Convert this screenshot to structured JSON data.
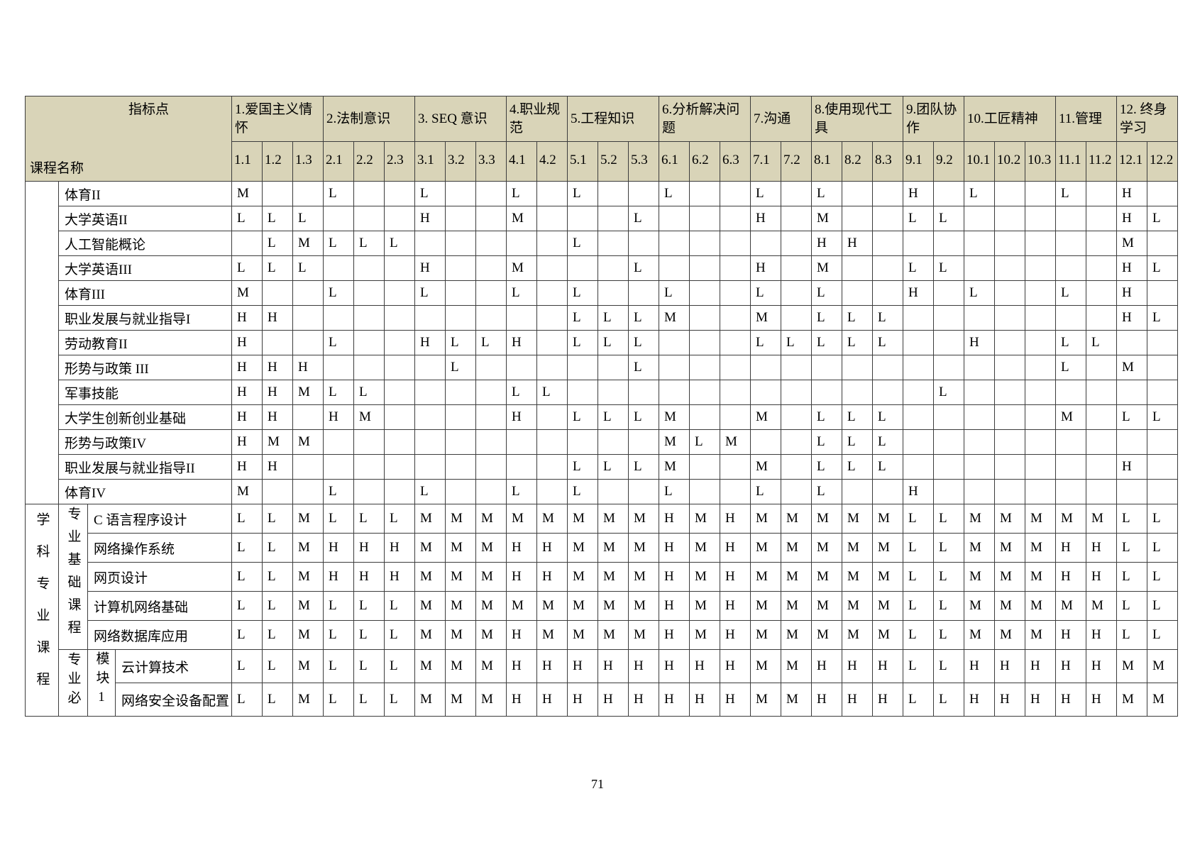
{
  "page": {
    "number": "71"
  },
  "table": {
    "corner": {
      "top_right_label": "指标点",
      "bottom_left_label": "课程名称"
    },
    "colors": {
      "header_bg": "#d9d4b8",
      "border": "#3c3c3c",
      "cell_bg": "#ffffff",
      "text": "#000000"
    },
    "legend_values": [
      "H",
      "M",
      "L"
    ],
    "indicator_groups": [
      {
        "label": "1.爱国主义情怀",
        "subs": [
          "1.1",
          "1.2",
          "1.3"
        ]
      },
      {
        "label": "2.法制意识",
        "subs": [
          "2.1",
          "2.2",
          "2.3"
        ]
      },
      {
        "label": "3. SEQ 意识",
        "subs": [
          "3.1",
          "3.2",
          "3.3"
        ]
      },
      {
        "label": "4.职业规范",
        "subs": [
          "4.1",
          "4.2"
        ]
      },
      {
        "label": "5.工程知识",
        "subs": [
          "5.1",
          "5.2",
          "5.3"
        ]
      },
      {
        "label": "6.分析解决问题",
        "subs": [
          "6.1",
          "6.2",
          "6.3"
        ]
      },
      {
        "label": "7.沟通",
        "subs": [
          "7.1",
          "7.2"
        ]
      },
      {
        "label": "8.使用现代工具",
        "subs": [
          "8.1",
          "8.2",
          "8.3"
        ]
      },
      {
        "label": "9.团队协作",
        "subs": [
          "9.1",
          "9.2"
        ]
      },
      {
        "label": "10.工匠精神",
        "subs": [
          "10.1",
          "10.2",
          "10.3"
        ]
      },
      {
        "label": "11.管理",
        "subs": [
          "11.1",
          "11.2"
        ]
      },
      {
        "label": "12. 终身学习",
        "subs": [
          "12.1",
          "12.2"
        ]
      }
    ],
    "sections": [
      {
        "side_label": "",
        "rows": [
          {
            "course": "体育II",
            "values": {
              "1.1": "M",
              "2.1": "L",
              "3.1": "L",
              "4.1": "L",
              "5.1": "L",
              "6.1": "L",
              "7.1": "L",
              "8.1": "L",
              "9.1": "H",
              "10.1": "L",
              "11.1": "L",
              "12.1": "H"
            }
          },
          {
            "course": "大学英语II",
            "values": {
              "1.1": "L",
              "1.2": "L",
              "1.3": "L",
              "3.1": "H",
              "4.1": "M",
              "5.3": "L",
              "7.1": "H",
              "8.1": "M",
              "9.1": "L",
              "9.2": "L",
              "12.1": "H",
              "12.2": "L"
            }
          },
          {
            "course": "人工智能概论",
            "values": {
              "1.2": "L",
              "1.3": "M",
              "2.1": "L",
              "2.2": "L",
              "2.3": "L",
              "5.1": "L",
              "8.1": "H",
              "8.2": "H",
              "12.1": "M"
            }
          },
          {
            "course": "大学英语III",
            "values": {
              "1.1": "L",
              "1.2": "L",
              "1.3": "L",
              "3.1": "H",
              "4.1": "M",
              "5.3": "L",
              "7.1": "H",
              "8.1": "M",
              "9.1": "L",
              "9.2": "L",
              "12.1": "H",
              "12.2": "L"
            }
          },
          {
            "course": "体育III",
            "values": {
              "1.1": "M",
              "2.1": "L",
              "3.1": "L",
              "4.1": "L",
              "5.1": "L",
              "6.1": "L",
              "7.1": "L",
              "8.1": "L",
              "9.1": "H",
              "10.1": "L",
              "11.1": "L",
              "12.1": "H"
            }
          },
          {
            "course": "职业发展与就业指导I",
            "values": {
              "1.1": "H",
              "1.2": "H",
              "5.1": "L",
              "5.2": "L",
              "5.3": "L",
              "6.1": "M",
              "7.1": "M",
              "8.1": "L",
              "8.2": "L",
              "8.3": "L",
              "12.1": "H",
              "12.2": "L"
            }
          },
          {
            "course": "劳动教育II",
            "values": {
              "1.1": "H",
              "2.1": "L",
              "3.1": "H",
              "3.2": "L",
              "3.3": "L",
              "4.1": "H",
              "5.1": "L",
              "5.2": "L",
              "5.3": "L",
              "7.1": "L",
              "7.2": "L",
              "8.1": "L",
              "8.2": "L",
              "8.3": "L",
              "10.1": "H",
              "11.1": "L",
              "11.2": "L"
            }
          },
          {
            "course": "形势与政策 III",
            "values": {
              "1.1": "H",
              "1.2": "H",
              "1.3": "H",
              "3.2": "L",
              "5.3": "L",
              "11.1": "L",
              "12.1": "M"
            }
          },
          {
            "course": "军事技能",
            "values": {
              "1.1": "H",
              "1.2": "H",
              "1.3": "M",
              "2.1": "L",
              "2.2": "L",
              "4.1": "L",
              "4.2": "L",
              "9.2": "L"
            }
          },
          {
            "course": "大学生创新创业基础",
            "values": {
              "1.1": "H",
              "1.2": "H",
              "2.1": "H",
              "2.2": "M",
              "4.1": "H",
              "5.1": "L",
              "5.2": "L",
              "5.3": "L",
              "6.1": "M",
              "7.1": "M",
              "8.1": "L",
              "8.2": "L",
              "8.3": "L",
              "11.1": "M",
              "12.1": "L",
              "12.2": "L"
            }
          },
          {
            "course": "形势与政策IV",
            "values": {
              "1.1": "H",
              "1.2": "M",
              "1.3": "M",
              "6.1": "M",
              "6.2": "L",
              "6.3": "M",
              "8.1": "L",
              "8.2": "L",
              "8.3": "L"
            }
          },
          {
            "course": "职业发展与就业指导II",
            "values": {
              "1.1": "H",
              "1.2": "H",
              "5.1": "L",
              "5.2": "L",
              "5.3": "L",
              "6.1": "M",
              "7.1": "M",
              "8.1": "L",
              "8.2": "L",
              "8.3": "L",
              "12.1": "H"
            }
          },
          {
            "course": "体育IV",
            "values": {
              "1.1": "M",
              "2.1": "L",
              "3.1": "L",
              "4.1": "L",
              "5.1": "L",
              "6.1": "L",
              "7.1": "L",
              "8.1": "L",
              "9.1": "H"
            }
          }
        ]
      },
      {
        "side_label": "学科专业课程",
        "subsections": [
          {
            "label": "专业基础课程",
            "module": "",
            "rows": [
              {
                "course": "C 语言程序设计",
                "values": {
                  "1.1": "L",
                  "1.2": "L",
                  "1.3": "M",
                  "2.1": "L",
                  "2.2": "L",
                  "2.3": "L",
                  "3.1": "M",
                  "3.2": "M",
                  "3.3": "M",
                  "4.1": "M",
                  "4.2": "M",
                  "5.1": "M",
                  "5.2": "M",
                  "5.3": "M",
                  "6.1": "H",
                  "6.2": "M",
                  "6.3": "H",
                  "7.1": "M",
                  "7.2": "M",
                  "8.1": "M",
                  "8.2": "M",
                  "8.3": "M",
                  "9.1": "L",
                  "9.2": "L",
                  "10.1": "M",
                  "10.2": "M",
                  "10.3": "M",
                  "11.1": "M",
                  "11.2": "M",
                  "12.1": "L",
                  "12.2": "L"
                }
              },
              {
                "course": "网络操作系统",
                "values": {
                  "1.1": "L",
                  "1.2": "L",
                  "1.3": "M",
                  "2.1": "H",
                  "2.2": "H",
                  "2.3": "H",
                  "3.1": "M",
                  "3.2": "M",
                  "3.3": "M",
                  "4.1": "H",
                  "4.2": "H",
                  "5.1": "M",
                  "5.2": "M",
                  "5.3": "M",
                  "6.1": "H",
                  "6.2": "M",
                  "6.3": "H",
                  "7.1": "M",
                  "7.2": "M",
                  "8.1": "M",
                  "8.2": "M",
                  "8.3": "M",
                  "9.1": "L",
                  "9.2": "L",
                  "10.1": "M",
                  "10.2": "M",
                  "10.3": "M",
                  "11.1": "H",
                  "11.2": "H",
                  "12.1": "L",
                  "12.2": "L"
                }
              },
              {
                "course": "网页设计",
                "values": {
                  "1.1": "L",
                  "1.2": "L",
                  "1.3": "M",
                  "2.1": "H",
                  "2.2": "H",
                  "2.3": "H",
                  "3.1": "M",
                  "3.2": "M",
                  "3.3": "M",
                  "4.1": "H",
                  "4.2": "H",
                  "5.1": "M",
                  "5.2": "M",
                  "5.3": "M",
                  "6.1": "H",
                  "6.2": "M",
                  "6.3": "H",
                  "7.1": "M",
                  "7.2": "M",
                  "8.1": "M",
                  "8.2": "M",
                  "8.3": "M",
                  "9.1": "L",
                  "9.2": "L",
                  "10.1": "M",
                  "10.2": "M",
                  "10.3": "M",
                  "11.1": "H",
                  "11.2": "H",
                  "12.1": "L",
                  "12.2": "L"
                }
              },
              {
                "course": "计算机网络基础",
                "values": {
                  "1.1": "L",
                  "1.2": "L",
                  "1.3": "M",
                  "2.1": "L",
                  "2.2": "L",
                  "2.3": "L",
                  "3.1": "M",
                  "3.2": "M",
                  "3.3": "M",
                  "4.1": "M",
                  "4.2": "M",
                  "5.1": "M",
                  "5.2": "M",
                  "5.3": "M",
                  "6.1": "H",
                  "6.2": "M",
                  "6.3": "H",
                  "7.1": "M",
                  "7.2": "M",
                  "8.1": "M",
                  "8.2": "M",
                  "8.3": "M",
                  "9.1": "L",
                  "9.2": "L",
                  "10.1": "M",
                  "10.2": "M",
                  "10.3": "M",
                  "11.1": "M",
                  "11.2": "M",
                  "12.1": "L",
                  "12.2": "L"
                }
              },
              {
                "course": "网络数据库应用",
                "values": {
                  "1.1": "L",
                  "1.2": "L",
                  "1.3": "M",
                  "2.1": "L",
                  "2.2": "L",
                  "2.3": "L",
                  "3.1": "M",
                  "3.2": "M",
                  "3.3": "M",
                  "4.1": "H",
                  "4.2": "M",
                  "5.1": "M",
                  "5.2": "M",
                  "5.3": "M",
                  "6.1": "H",
                  "6.2": "M",
                  "6.3": "H",
                  "7.1": "M",
                  "7.2": "M",
                  "8.1": "M",
                  "8.2": "M",
                  "8.3": "M",
                  "9.1": "L",
                  "9.2": "L",
                  "10.1": "M",
                  "10.2": "M",
                  "10.3": "M",
                  "11.1": "H",
                  "11.2": "H",
                  "12.1": "L",
                  "12.2": "L"
                }
              }
            ]
          },
          {
            "label": "专业必",
            "module": "模块1",
            "rows": [
              {
                "course": "云计算技术",
                "values": {
                  "1.1": "L",
                  "1.2": "L",
                  "1.3": "M",
                  "2.1": "L",
                  "2.2": "L",
                  "2.3": "L",
                  "3.1": "M",
                  "3.2": "M",
                  "3.3": "M",
                  "4.1": "H",
                  "4.2": "H",
                  "5.1": "H",
                  "5.2": "H",
                  "5.3": "H",
                  "6.1": "H",
                  "6.2": "H",
                  "6.3": "H",
                  "7.1": "M",
                  "7.2": "M",
                  "8.1": "H",
                  "8.2": "H",
                  "8.3": "H",
                  "9.1": "L",
                  "9.2": "L",
                  "10.1": "H",
                  "10.2": "H",
                  "10.3": "H",
                  "11.1": "H",
                  "11.2": "H",
                  "12.1": "M",
                  "12.2": "M"
                }
              },
              {
                "course": "网络安全设备配置",
                "values": {
                  "1.1": "L",
                  "1.2": "L",
                  "1.3": "M",
                  "2.1": "L",
                  "2.2": "L",
                  "2.3": "L",
                  "3.1": "M",
                  "3.2": "M",
                  "3.3": "M",
                  "4.1": "H",
                  "4.2": "H",
                  "5.1": "H",
                  "5.2": "H",
                  "5.3": "H",
                  "6.1": "H",
                  "6.2": "H",
                  "6.3": "H",
                  "7.1": "M",
                  "7.2": "M",
                  "8.1": "H",
                  "8.2": "H",
                  "8.3": "H",
                  "9.1": "L",
                  "9.2": "L",
                  "10.1": "H",
                  "10.2": "H",
                  "10.3": "H",
                  "11.1": "H",
                  "11.2": "H",
                  "12.1": "M",
                  "12.2": "M"
                }
              }
            ]
          }
        ]
      }
    ]
  }
}
